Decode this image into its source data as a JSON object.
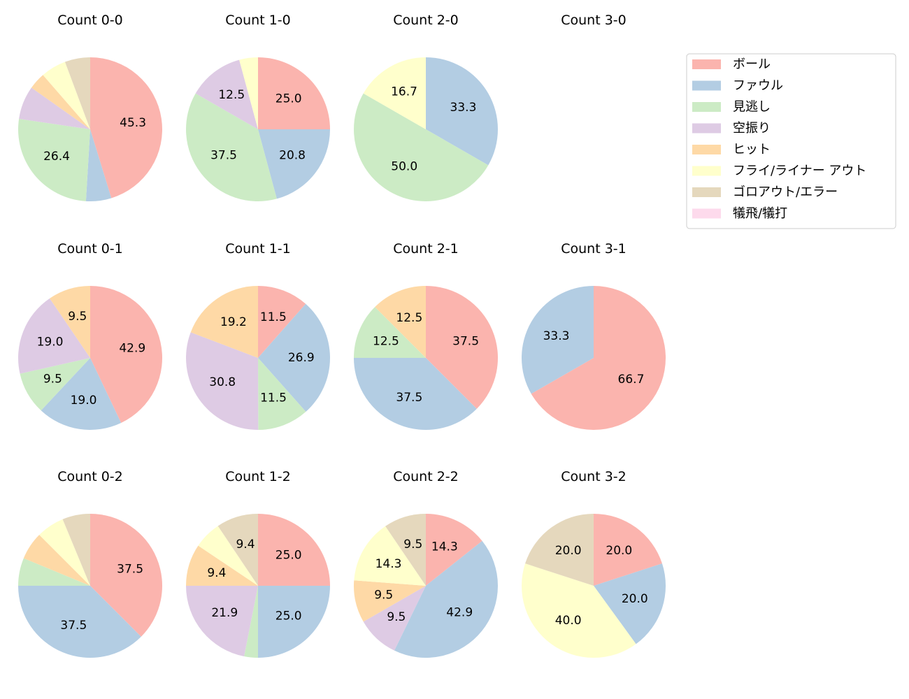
{
  "chart_data": {
    "type": "pie",
    "legend": {
      "placement": "top-right",
      "entries": [
        "ボール",
        "ファウル",
        "見逃し",
        "空振り",
        "ヒット",
        "フライ/ライナー アウト",
        "ゴロアウト/エラー",
        "犠飛/犠打"
      ]
    },
    "colors": [
      "#fbb4ae",
      "#b3cde3",
      "#ccebc5",
      "#decbe4",
      "#fed9a6",
      "#ffffcc",
      "#e5d8bd",
      "#fddaec"
    ],
    "start_angle": 90,
    "direction": "clockwise",
    "pies": [
      {
        "title": "Count 0-0",
        "values": [
          45.3,
          5.7,
          26.4,
          7.5,
          3.8,
          5.7,
          5.7,
          0
        ]
      },
      {
        "title": "Count 1-0",
        "values": [
          25.0,
          20.8,
          37.5,
          12.5,
          0,
          4.2,
          0,
          0
        ]
      },
      {
        "title": "Count 2-0",
        "values": [
          0,
          33.3,
          50.0,
          0,
          0,
          16.7,
          0,
          0
        ]
      },
      {
        "title": "Count 3-0",
        "values": []
      },
      {
        "title": "Count 0-1",
        "values": [
          42.9,
          19.0,
          9.5,
          19.0,
          9.5,
          0,
          0,
          0
        ]
      },
      {
        "title": "Count 1-1",
        "values": [
          11.5,
          26.9,
          11.5,
          30.8,
          19.2,
          0,
          0,
          0
        ]
      },
      {
        "title": "Count 2-1",
        "values": [
          37.5,
          37.5,
          12.5,
          0,
          12.5,
          0,
          0,
          0
        ]
      },
      {
        "title": "Count 3-1",
        "values": [
          66.7,
          33.3,
          0,
          0,
          0,
          0,
          0,
          0
        ]
      },
      {
        "title": "Count 0-2",
        "values": [
          37.5,
          37.5,
          6.25,
          0,
          6.25,
          6.25,
          6.25,
          0
        ]
      },
      {
        "title": "Count 1-2",
        "values": [
          25.0,
          25.0,
          3.1,
          21.9,
          9.4,
          6.2,
          9.4,
          0
        ]
      },
      {
        "title": "Count 2-2",
        "values": [
          14.3,
          42.9,
          0,
          9.5,
          9.5,
          14.3,
          9.5,
          0
        ]
      },
      {
        "title": "Count 3-2",
        "values": [
          20.0,
          20.0,
          0,
          0,
          0,
          40.0,
          20.0,
          0
        ]
      }
    ]
  }
}
